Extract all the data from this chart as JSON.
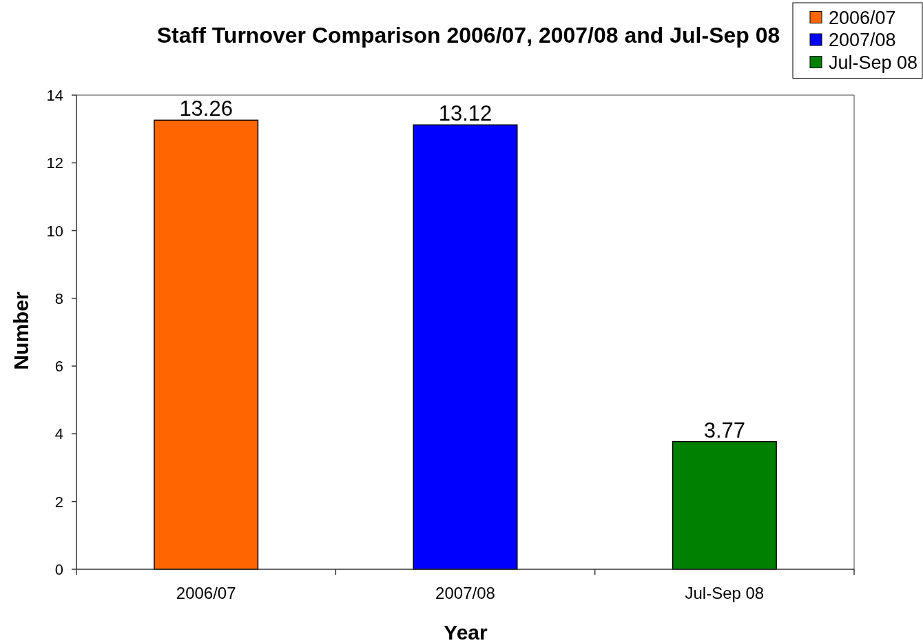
{
  "chart_data": {
    "type": "bar",
    "title": "Staff Turnover Comparison 2006/07, 2007/08 and Jul-Sep 08",
    "xlabel": "Year",
    "ylabel": "Number",
    "categories": [
      "2006/07",
      "2007/08",
      "Jul-Sep 08"
    ],
    "series": [
      {
        "name": "2006/07",
        "color": "#ff6600",
        "values": [
          13.26,
          null,
          null
        ]
      },
      {
        "name": "2007/08",
        "color": "#0000ff",
        "values": [
          null,
          13.12,
          null
        ]
      },
      {
        "name": "Jul-Sep 08",
        "color": "#008000",
        "values": [
          null,
          null,
          3.77
        ]
      }
    ],
    "ylim": [
      0,
      14
    ],
    "yticks": [
      0,
      2,
      4,
      6,
      8,
      10,
      12,
      14
    ],
    "data_labels": true,
    "legend": "top right"
  }
}
